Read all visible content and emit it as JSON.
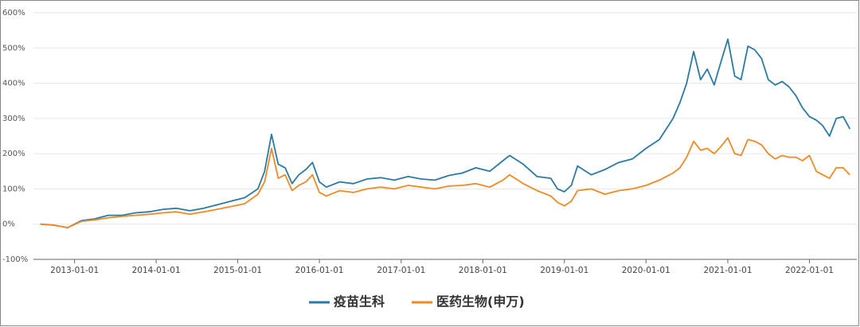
{
  "chart_data": {
    "type": "line",
    "x": [
      "2012-08-01",
      "2012-10-01",
      "2012-12-01",
      "2013-02-01",
      "2013-04-01",
      "2013-06-01",
      "2013-08-01",
      "2013-10-01",
      "2013-12-01",
      "2014-02-01",
      "2014-04-01",
      "2014-06-01",
      "2014-08-01",
      "2014-10-01",
      "2014-12-01",
      "2015-02-01",
      "2015-04-01",
      "2015-05-01",
      "2015-06-01",
      "2015-07-01",
      "2015-08-01",
      "2015-09-01",
      "2015-10-01",
      "2015-11-01",
      "2015-12-01",
      "2016-01-01",
      "2016-02-01",
      "2016-04-01",
      "2016-06-01",
      "2016-08-01",
      "2016-10-01",
      "2016-12-01",
      "2017-02-01",
      "2017-04-01",
      "2017-06-01",
      "2017-08-01",
      "2017-10-01",
      "2017-12-01",
      "2018-02-01",
      "2018-04-01",
      "2018-05-01",
      "2018-07-01",
      "2018-09-01",
      "2018-11-01",
      "2018-12-01",
      "2019-01-01",
      "2019-02-01",
      "2019-03-01",
      "2019-05-01",
      "2019-07-01",
      "2019-09-01",
      "2019-11-01",
      "2020-01-01",
      "2020-03-01",
      "2020-05-01",
      "2020-06-01",
      "2020-07-01",
      "2020-08-01",
      "2020-09-01",
      "2020-10-01",
      "2020-11-01",
      "2020-12-01",
      "2021-01-01",
      "2021-02-01",
      "2021-03-01",
      "2021-04-01",
      "2021-05-01",
      "2021-06-01",
      "2021-07-01",
      "2021-08-01",
      "2021-09-01",
      "2021-10-01",
      "2021-11-01",
      "2021-12-01",
      "2022-01-01",
      "2022-02-01",
      "2022-03-01",
      "2022-04-01",
      "2022-05-01",
      "2022-06-01",
      "2022-07-01"
    ],
    "series": [
      {
        "name": "疫苗生科",
        "color": "#2a7aa3",
        "values": [
          0,
          -3,
          -10,
          10,
          15,
          25,
          25,
          32,
          35,
          42,
          45,
          38,
          45,
          55,
          65,
          75,
          100,
          150,
          255,
          170,
          160,
          115,
          140,
          155,
          175,
          120,
          105,
          120,
          115,
          128,
          132,
          125,
          135,
          128,
          125,
          138,
          145,
          160,
          150,
          180,
          195,
          170,
          135,
          130,
          100,
          92,
          110,
          165,
          140,
          155,
          175,
          185,
          215,
          240,
          300,
          345,
          400,
          490,
          410,
          440,
          395,
          460,
          525,
          420,
          410,
          505,
          495,
          470,
          410,
          395,
          405,
          390,
          365,
          330,
          305,
          295,
          280,
          250,
          300,
          305,
          270
        ]
      },
      {
        "name": "医药生物(申万)",
        "color": "#f08a24",
        "values": [
          0,
          -3,
          -10,
          8,
          12,
          18,
          22,
          25,
          28,
          32,
          35,
          28,
          35,
          42,
          50,
          58,
          85,
          120,
          215,
          130,
          140,
          95,
          110,
          120,
          140,
          90,
          80,
          95,
          90,
          100,
          105,
          100,
          110,
          105,
          100,
          108,
          110,
          115,
          105,
          125,
          140,
          115,
          95,
          80,
          62,
          52,
          65,
          95,
          100,
          85,
          95,
          100,
          110,
          125,
          145,
          160,
          190,
          235,
          210,
          215,
          200,
          220,
          245,
          200,
          195,
          240,
          235,
          225,
          200,
          185,
          195,
          190,
          190,
          180,
          195,
          150,
          140,
          130,
          160,
          160,
          140
        ]
      }
    ],
    "xlim": [
      "2012-07-01",
      "2022-08-01"
    ],
    "xticks": [
      "2013-01-01",
      "2014-01-01",
      "2015-01-01",
      "2016-01-01",
      "2017-01-01",
      "2018-01-01",
      "2019-01-01",
      "2020-01-01",
      "2021-01-01",
      "2022-01-01"
    ],
    "ylim": [
      -100,
      600
    ],
    "yticks": [
      {
        "value": -100,
        "label": "-100%"
      },
      {
        "value": 0,
        "label": "0%"
      },
      {
        "value": 100,
        "label": "100%"
      },
      {
        "value": 200,
        "label": "200%"
      },
      {
        "value": 300,
        "label": "300%"
      },
      {
        "value": 400,
        "label": "400%"
      },
      {
        "value": 500,
        "label": "500%"
      },
      {
        "value": 600,
        "label": "600%"
      }
    ],
    "grid": true,
    "legend": "bottom"
  }
}
